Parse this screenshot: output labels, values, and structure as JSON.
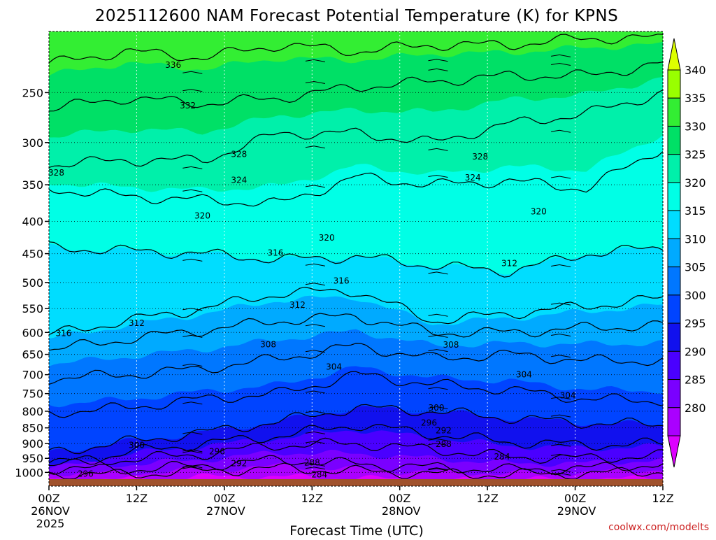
{
  "title": "2025112600 NAM Forecast Potential Temperature (K) for KPNS",
  "xlabel": "Forecast Time (UTC)",
  "credit": "coolwx.com/modelts",
  "chart_data": {
    "type": "heatmap",
    "title": "2025112600 NAM Forecast Potential Temperature (K) for KPNS",
    "xlabel": "Forecast Time (UTC)",
    "ylabel": "",
    "x_ticks": [
      {
        "hour": 0,
        "label": "00Z",
        "date": "26NOV",
        "year": "2025"
      },
      {
        "hour": 12,
        "label": "12Z",
        "date": "",
        "year": ""
      },
      {
        "hour": 24,
        "label": "00Z",
        "date": "27NOV",
        "year": ""
      },
      {
        "hour": 36,
        "label": "12Z",
        "date": "",
        "year": ""
      },
      {
        "hour": 48,
        "label": "00Z",
        "date": "28NOV",
        "year": ""
      },
      {
        "hour": 60,
        "label": "12Z",
        "date": "",
        "year": ""
      },
      {
        "hour": 72,
        "label": "00Z",
        "date": "29NOV",
        "year": ""
      },
      {
        "hour": 84,
        "label": "12Z",
        "date": "",
        "year": ""
      }
    ],
    "xlim": [
      0,
      84
    ],
    "y_ticks": [
      250,
      300,
      350,
      400,
      450,
      500,
      550,
      600,
      650,
      700,
      750,
      800,
      850,
      900,
      950,
      1000
    ],
    "ylim": [
      1025,
      200
    ],
    "y_scale": "log",
    "grid": true,
    "colorbar": {
      "levels": [
        280,
        285,
        290,
        295,
        300,
        305,
        310,
        315,
        320,
        325,
        330,
        335,
        340
      ],
      "labels": [
        "340",
        "335",
        "330",
        "325",
        "320",
        "315",
        "310",
        "305",
        "300",
        "295",
        "290",
        "285",
        "280"
      ],
      "colors": [
        "#dd00ff",
        "#aa00ff",
        "#7a00ff",
        "#4a00ff",
        "#1111ee",
        "#0044ff",
        "#0077ff",
        "#00aaff",
        "#00ddff",
        "#00ffe6",
        "#00f0aa",
        "#00e066",
        "#33ee33",
        "#99ff00",
        "#ddff00"
      ]
    },
    "isentropes": [
      {
        "theta": 284,
        "p": [
          1005,
          1008,
          995,
          985,
          995,
          1005,
          1008,
          1005,
          995
        ]
      },
      {
        "theta": 288,
        "p": [
          985,
          990,
          975,
          955,
          970,
          982,
          990,
          985,
          970
        ]
      },
      {
        "theta": 292,
        "p": [
          960,
          955,
          935,
          905,
          900,
          920,
          945,
          950,
          940
        ]
      },
      {
        "theta": 296,
        "p": [
          985,
          930,
          900,
          875,
          840,
          870,
          895,
          905,
          900
        ]
      },
      {
        "theta": 300,
        "p": [
          930,
          895,
          865,
          830,
          790,
          800,
          820,
          835,
          840
        ]
      },
      {
        "theta": 304,
        "p": [
          805,
          790,
          765,
          750,
          700,
          725,
          740,
          765,
          770
        ]
      },
      {
        "theta": 308,
        "p": [
          710,
          700,
          685,
          660,
          630,
          660,
          650,
          665,
          665
        ]
      },
      {
        "theta": 312,
        "p": [
          640,
          615,
          595,
          575,
          565,
          600,
          600,
          590,
          585
        ]
      },
      {
        "theta": 316,
        "p": [
          605,
          575,
          550,
          520,
          515,
          575,
          560,
          545,
          530
        ]
      },
      {
        "theta": 320,
        "p": [
          440,
          445,
          450,
          460,
          455,
          470,
          480,
          450,
          440
        ]
      },
      {
        "theta": 324,
        "p": [
          355,
          365,
          370,
          375,
          340,
          350,
          345,
          355,
          305
        ]
      },
      {
        "theta": 328,
        "p": [
          325,
          320,
          320,
          290,
          290,
          300,
          280,
          270,
          250
        ]
      },
      {
        "theta": 332,
        "p": [
          265,
          255,
          260,
          255,
          245,
          240,
          235,
          235,
          225
        ]
      },
      {
        "theta": 336,
        "p": [
          225,
          215,
          220,
          210,
          215,
          210,
          210,
          205,
          205
        ]
      }
    ],
    "contour_labels": [
      "336",
      "332",
      "328",
      "328",
      "328",
      "324",
      "324",
      "320",
      "320",
      "320",
      "316",
      "316",
      "316",
      "312",
      "312",
      "312",
      "308",
      "308",
      "304",
      "304",
      "304",
      "300",
      "300",
      "296",
      "296",
      "296",
      "292",
      "292",
      "288",
      "288",
      "284",
      "284"
    ]
  }
}
